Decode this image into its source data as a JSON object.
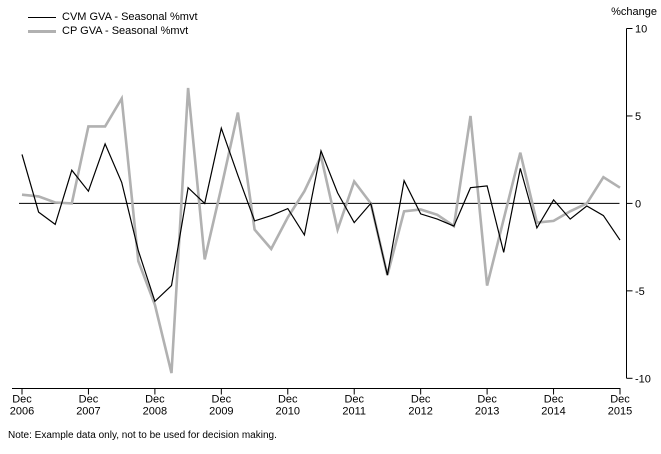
{
  "legend": {
    "items": [
      {
        "label": "CVM GVA - Seasonal %mvt",
        "color": "#000000",
        "thickness": 1
      },
      {
        "label": "CP GVA - Seasonal %mvt",
        "color": "#b1b1b1",
        "thickness": 3
      }
    ]
  },
  "y_axis": {
    "title": "%change",
    "ticks": [
      10,
      5,
      0,
      -5,
      -10
    ],
    "min": -10,
    "max": 10
  },
  "x_axis": {
    "tick_month": "Dec",
    "tick_years": [
      "2006",
      "2007",
      "2008",
      "2009",
      "2010",
      "2011",
      "2012",
      "2013",
      "2014",
      "2015"
    ]
  },
  "note": "Note: Example data only, not to be used for decision making.",
  "chart_data": {
    "type": "line",
    "title": "",
    "xlabel": "",
    "ylabel": "%change",
    "ylim": [
      -10,
      10
    ],
    "grid": false,
    "legend_position": "top-left",
    "x": [
      "Dec 2006",
      "Mar 2007",
      "Jun 2007",
      "Sep 2007",
      "Dec 2007",
      "Mar 2008",
      "Jun 2008",
      "Sep 2008",
      "Dec 2008",
      "Mar 2009",
      "Jun 2009",
      "Sep 2009",
      "Dec 2009",
      "Mar 2010",
      "Jun 2010",
      "Sep 2010",
      "Dec 2010",
      "Mar 2011",
      "Jun 2011",
      "Sep 2011",
      "Dec 2011",
      "Mar 2012",
      "Jun 2012",
      "Sep 2012",
      "Dec 2012",
      "Mar 2013",
      "Jun 2013",
      "Sep 2013",
      "Dec 2013",
      "Mar 2014",
      "Jun 2014",
      "Sep 2014",
      "Dec 2014",
      "Mar 2015",
      "Jun 2015",
      "Sep 2015",
      "Dec 2015"
    ],
    "series": [
      {
        "name": "CVM GVA - Seasonal %mvt",
        "color": "#000000",
        "width": 1.2,
        "values": [
          2.8,
          -0.5,
          -1.2,
          1.9,
          0.7,
          3.4,
          1.2,
          -2.7,
          -5.6,
          -4.7,
          0.9,
          0.0,
          4.3,
          1.6,
          -1.0,
          -0.7,
          -0.3,
          -1.8,
          3.0,
          0.6,
          -1.1,
          0.0,
          -4.1,
          1.3,
          -0.6,
          -0.9,
          -1.3,
          0.9,
          1.0,
          -2.8,
          2.0,
          -1.4,
          0.2,
          -0.9,
          -0.15,
          -0.7,
          -2.1
        ]
      },
      {
        "name": "CP GVA - Seasonal %mvt",
        "color": "#b1b1b1",
        "width": 2.6,
        "values": [
          0.5,
          0.4,
          0.05,
          0.0,
          4.4,
          4.4,
          6.0,
          -3.3,
          -5.8,
          -9.7,
          6.6,
          -3.2,
          0.9,
          5.2,
          -1.5,
          -2.6,
          -0.8,
          0.7,
          2.7,
          -1.5,
          1.25,
          0.0,
          -4.1,
          -0.45,
          -0.35,
          -0.65,
          -1.3,
          5.0,
          -4.7,
          -0.9,
          2.9,
          -1.1,
          -1.0,
          -0.45,
          0.0,
          1.5,
          0.9
        ]
      }
    ]
  }
}
